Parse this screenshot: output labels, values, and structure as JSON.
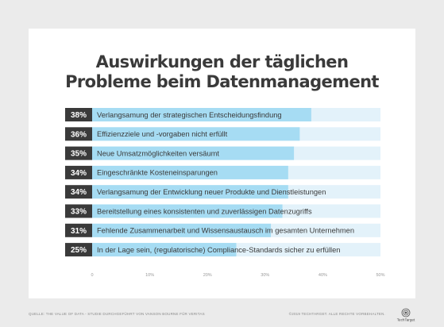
{
  "title_line1": "Auswirkungen der täglichen",
  "title_line2": "Probleme beim Datenmanagement",
  "footer_source": "Quelle: The Value of Data - Studie durchgeführt von Vanson Bourne für Veritas",
  "footer_copyright": "©2019 TechTarget. Alle Rechte vorbehalten.",
  "logo_text": "TechTarget",
  "colors": {
    "bar_fill": "#a6dcf3",
    "bar_track": "#e3f2fa",
    "label_bg": "#3a3a3a",
    "label_text": "#ffffff",
    "text": "#3a3a3a",
    "axis_text": "#999999"
  },
  "chart_data": {
    "type": "bar",
    "orientation": "horizontal",
    "categories": [
      "Verlangsamung der strategischen Entscheidungsfindung",
      "Effizienzziele und -vorgaben nicht erfüllt",
      "Neue Umsatzmöglichkeiten versäumt",
      "Eingeschränkte Kosteneinsparungen",
      "Verlangsamung der Entwicklung neuer Produkte und Dienstleistungen",
      "Bereitstellung eines konsistenten und zuverlässigen Datenzugriffs",
      "Fehlende Zusammenarbeit und Wissensaustausch im gesamten Unternehmen",
      "In der Lage sein, (regulatorische) Compliance-Standards sicher zu erfüllen"
    ],
    "values": [
      38,
      36,
      35,
      34,
      34,
      33,
      31,
      25
    ],
    "value_labels": [
      "38%",
      "36%",
      "35%",
      "34%",
      "34%",
      "33%",
      "31%",
      "25%"
    ],
    "xlim": [
      0,
      50
    ],
    "xticks": [
      0,
      10,
      20,
      30,
      40,
      50
    ],
    "xtick_labels": [
      "0",
      "10%",
      "20%",
      "30%",
      "40%",
      "50%"
    ],
    "grid": false,
    "legend": "none"
  }
}
